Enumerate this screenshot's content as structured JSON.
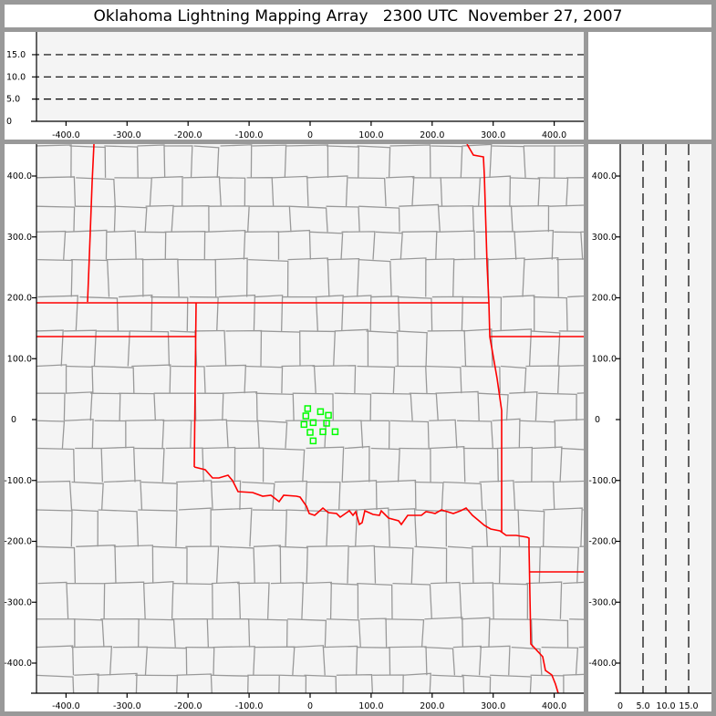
{
  "title": "Oklahoma Lightning Mapping Array   2300 UTC  November 27, 2007",
  "colors": {
    "state_border": "#ff0000",
    "county_border": "#999999",
    "plot_bg": "#f4f4f4",
    "source_marker": "#00ff00",
    "frame": "#999999"
  },
  "chart_data": [
    {
      "type": "scatter",
      "panel": "plan-view",
      "xlim": [
        -450,
        450
      ],
      "ylim": [
        -450,
        450
      ],
      "x_ticks": [
        {
          "v": -400,
          "label": "-400.0"
        },
        {
          "v": -300,
          "label": "-300.0"
        },
        {
          "v": -200,
          "label": "-200.0"
        },
        {
          "v": -100,
          "label": "-100.0"
        },
        {
          "v": 0,
          "label": "0"
        },
        {
          "v": 100,
          "label": "100.0"
        },
        {
          "v": 200,
          "label": "200.0"
        },
        {
          "v": 300,
          "label": "300.0"
        },
        {
          "v": 400,
          "label": "400.0"
        }
      ],
      "y_ticks": [
        {
          "v": 400,
          "label": "400.0"
        },
        {
          "v": 300,
          "label": "300.0"
        },
        {
          "v": 200,
          "label": "200.0"
        },
        {
          "v": 100,
          "label": "100.0"
        },
        {
          "v": 0,
          "label": "0"
        },
        {
          "v": -100,
          "label": "-100.0"
        },
        {
          "v": -200,
          "label": "-200.0"
        },
        {
          "v": -300,
          "label": "-300.0"
        },
        {
          "v": -400,
          "label": "-400.0"
        }
      ],
      "marker": "open-square",
      "points": [
        [
          -4,
          18
        ],
        [
          -7,
          6
        ],
        [
          17,
          13
        ],
        [
          30,
          7
        ],
        [
          -10,
          -8
        ],
        [
          5,
          -5
        ],
        [
          27,
          -6
        ],
        [
          0,
          -21
        ],
        [
          21,
          -20
        ],
        [
          41,
          -20
        ],
        [
          5,
          -35
        ]
      ]
    },
    {
      "type": "scatter",
      "panel": "east-west-vs-altitude",
      "xlim": [
        -450,
        450
      ],
      "ylim": [
        0,
        20
      ],
      "x_ticks": [
        {
          "v": -400,
          "label": "-400.0"
        },
        {
          "v": -300,
          "label": "-300.0"
        },
        {
          "v": -200,
          "label": "-200.0"
        },
        {
          "v": -100,
          "label": "-100.0"
        },
        {
          "v": 0,
          "label": "0"
        },
        {
          "v": 100,
          "label": "100.0"
        },
        {
          "v": 200,
          "label": "200.0"
        },
        {
          "v": 300,
          "label": "300.0"
        },
        {
          "v": 400,
          "label": "400.0"
        }
      ],
      "y_ticks": [
        {
          "v": 0,
          "label": "0"
        },
        {
          "v": 5,
          "label": "5.0"
        },
        {
          "v": 10,
          "label": "10.0"
        },
        {
          "v": 15,
          "label": "15.0"
        }
      ],
      "grid": "dashed at 5, 10, 15",
      "points": []
    },
    {
      "type": "scatter",
      "panel": "altitude-vs-north-south",
      "xlim": [
        0,
        20
      ],
      "ylim": [
        -450,
        450
      ],
      "x_ticks": [
        {
          "v": 0,
          "label": "0"
        },
        {
          "v": 5,
          "label": "5.0"
        },
        {
          "v": 10,
          "label": "10.0"
        },
        {
          "v": 15,
          "label": "15.0"
        }
      ],
      "y_ticks": [
        {
          "v": 400,
          "label": "400.0"
        },
        {
          "v": 300,
          "label": "300.0"
        },
        {
          "v": 200,
          "label": "200.0"
        },
        {
          "v": 100,
          "label": "100.0"
        },
        {
          "v": 0,
          "label": "0"
        },
        {
          "v": -100,
          "label": "-100.0"
        },
        {
          "v": -200,
          "label": "-200.0"
        },
        {
          "v": -300,
          "label": "-300.0"
        },
        {
          "v": -400,
          "label": "-400.0"
        }
      ],
      "grid": "dashed at 5, 10, 15",
      "points": []
    }
  ]
}
